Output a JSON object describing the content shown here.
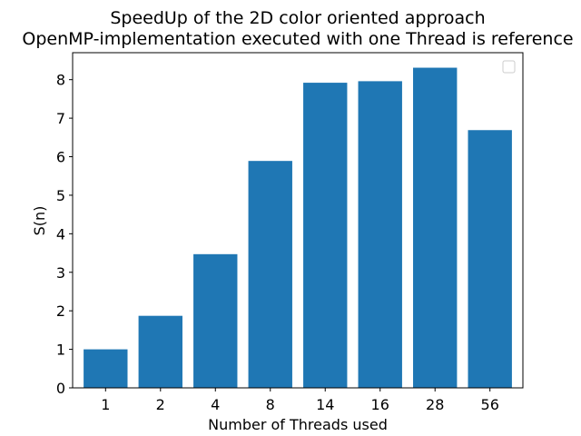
{
  "chart_data": {
    "type": "bar",
    "title_line1": "SpeedUp of the 2D color oriented approach",
    "title_line2": "OpenMP-implementation executed with one Thread is reference",
    "xlabel": "Number of Threads used",
    "ylabel": "S(n)",
    "categories": [
      "1",
      "2",
      "4",
      "8",
      "14",
      "16",
      "28",
      "56"
    ],
    "values": [
      1.0,
      1.87,
      3.47,
      5.89,
      7.92,
      7.96,
      8.31,
      6.69
    ],
    "ylim": [
      0,
      8.7
    ],
    "yticks": [
      0,
      1,
      2,
      3,
      4,
      5,
      6,
      7,
      8
    ],
    "grid": false,
    "legend": "top-right (empty)",
    "bar_color": "#1f77b4"
  }
}
